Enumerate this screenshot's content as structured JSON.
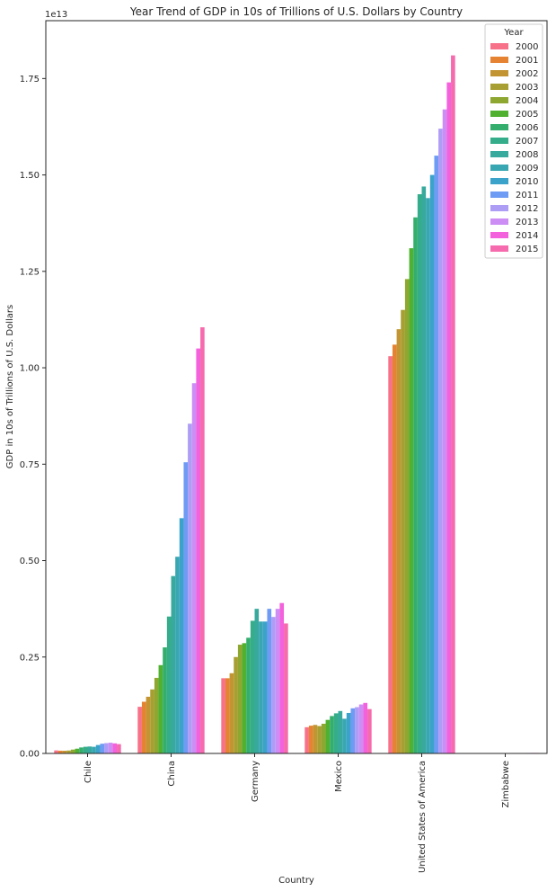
{
  "chart_data": {
    "type": "bar",
    "title": "Year Trend of GDP in 10s of Trillions of U.S. Dollars by Country",
    "xlabel": "Country",
    "ylabel": "GDP in 10s of Trillions of U.S. Dollars",
    "offset_label": "1e13",
    "ylim": [
      0,
      1.9
    ],
    "yticks": [
      0.0,
      0.25,
      0.5,
      0.75,
      1.0,
      1.25,
      1.5,
      1.75
    ],
    "ytick_labels": [
      "0.00",
      "0.25",
      "0.50",
      "0.75",
      "1.00",
      "1.25",
      "1.50",
      "1.75"
    ],
    "grid": false,
    "legend": {
      "title": "Year",
      "placement": "top-right"
    },
    "categories": [
      "Chile",
      "China",
      "Germany",
      "Mexico",
      "United States of America",
      "Zimbabwe"
    ],
    "series": [
      {
        "name": "2000",
        "color": "#f77189",
        "values": [
          0.0078,
          0.121,
          0.195,
          0.068,
          1.03,
          0.0007
        ]
      },
      {
        "name": "2001",
        "color": "#e68332",
        "values": [
          0.0071,
          0.134,
          0.195,
          0.072,
          1.06,
          0.0007
        ]
      },
      {
        "name": "2002",
        "color": "#c39532",
        "values": [
          0.007,
          0.147,
          0.208,
          0.074,
          1.1,
          0.0006
        ]
      },
      {
        "name": "2003",
        "color": "#a79f31",
        "values": [
          0.0076,
          0.166,
          0.25,
          0.071,
          1.15,
          0.0005
        ]
      },
      {
        "name": "2004",
        "color": "#8ea731",
        "values": [
          0.01,
          0.196,
          0.282,
          0.077,
          1.23,
          0.0005
        ]
      },
      {
        "name": "2005",
        "color": "#50b131",
        "values": [
          0.0123,
          0.229,
          0.286,
          0.087,
          1.31,
          0.0006
        ]
      },
      {
        "name": "2006",
        "color": "#34ae6c",
        "values": [
          0.0155,
          0.275,
          0.3,
          0.097,
          1.39,
          0.0005
        ]
      },
      {
        "name": "2007",
        "color": "#36ad8a",
        "values": [
          0.0173,
          0.355,
          0.344,
          0.104,
          1.45,
          0.0005
        ]
      },
      {
        "name": "2008",
        "color": "#38aa9d",
        "values": [
          0.018,
          0.46,
          0.375,
          0.11,
          1.47,
          0.0004
        ]
      },
      {
        "name": "2009",
        "color": "#39a7b1",
        "values": [
          0.0172,
          0.51,
          0.342,
          0.09,
          1.44,
          0.0009
        ]
      },
      {
        "name": "2010",
        "color": "#3ba3ca",
        "values": [
          0.0218,
          0.61,
          0.342,
          0.105,
          1.5,
          0.001
        ]
      },
      {
        "name": "2011",
        "color": "#6e9bf4",
        "values": [
          0.0252,
          0.755,
          0.375,
          0.117,
          1.55,
          0.0011
        ]
      },
      {
        "name": "2012",
        "color": "#ae9df5",
        "values": [
          0.0267,
          0.855,
          0.354,
          0.12,
          1.62,
          0.0012
        ]
      },
      {
        "name": "2013",
        "color": "#cc8ef4",
        "values": [
          0.0278,
          0.96,
          0.375,
          0.127,
          1.67,
          0.0013
        ]
      },
      {
        "name": "2014",
        "color": "#f461dd",
        "values": [
          0.0261,
          1.05,
          0.39,
          0.131,
          1.74,
          0.0014
        ]
      },
      {
        "name": "2015",
        "color": "#f66bad",
        "values": [
          0.0242,
          1.105,
          0.337,
          0.115,
          1.81,
          0.0014
        ]
      }
    ]
  }
}
